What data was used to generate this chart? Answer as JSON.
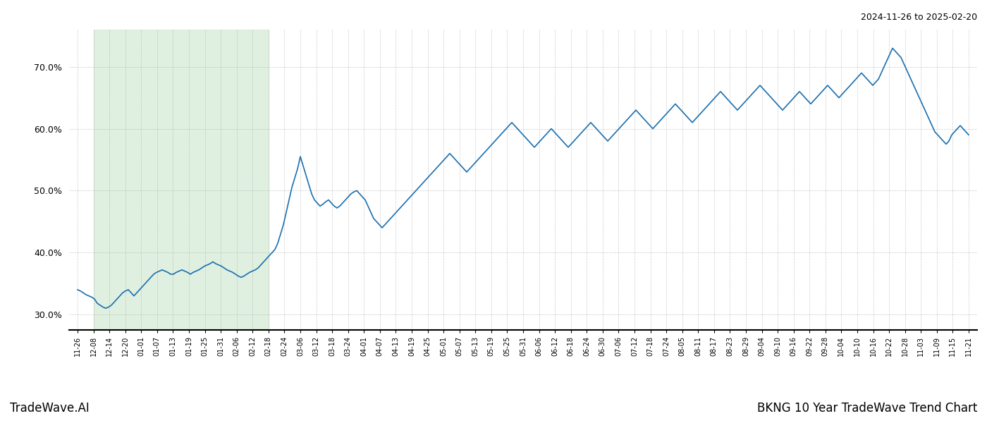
{
  "title_top_right": "2024-11-26 to 2025-02-20",
  "title_bottom_left": "TradeWave.AI",
  "title_bottom_right": "BKNG 10 Year TradeWave Trend Chart",
  "bg_color": "#ffffff",
  "grid_color": "#aaaaaa",
  "line_color": "#1a6faf",
  "shade_color": "#d4ead4",
  "shade_alpha": 0.7,
  "ylim": [
    27.5,
    76.0
  ],
  "yticks": [
    30.0,
    40.0,
    50.0,
    60.0,
    70.0
  ],
  "x_labels": [
    "11-26",
    "12-08",
    "12-14",
    "12-20",
    "01-01",
    "01-07",
    "01-13",
    "01-19",
    "01-25",
    "01-31",
    "02-06",
    "02-12",
    "02-18",
    "02-24",
    "03-06",
    "03-12",
    "03-18",
    "03-24",
    "04-01",
    "04-07",
    "04-13",
    "04-19",
    "04-25",
    "05-01",
    "05-07",
    "05-13",
    "05-19",
    "05-25",
    "05-31",
    "06-06",
    "06-12",
    "06-18",
    "06-24",
    "06-30",
    "07-06",
    "07-12",
    "07-18",
    "07-24",
    "08-05",
    "08-11",
    "08-17",
    "08-23",
    "08-29",
    "09-04",
    "09-10",
    "09-16",
    "09-22",
    "09-28",
    "10-04",
    "10-10",
    "10-16",
    "10-22",
    "10-28",
    "11-03",
    "11-09",
    "11-15",
    "11-21"
  ],
  "shade_start_label": "12-08",
  "shade_end_label": "02-18",
  "values": [
    34.0,
    33.8,
    33.5,
    33.2,
    33.0,
    32.8,
    32.5,
    31.8,
    31.5,
    31.2,
    31.0,
    31.2,
    31.5,
    32.0,
    32.5,
    33.0,
    33.5,
    33.8,
    34.0,
    33.5,
    33.0,
    33.5,
    34.0,
    34.5,
    35.0,
    35.5,
    36.0,
    36.5,
    36.8,
    37.0,
    37.2,
    37.0,
    36.8,
    36.5,
    36.5,
    36.8,
    37.0,
    37.2,
    37.0,
    36.8,
    36.5,
    36.8,
    37.0,
    37.2,
    37.5,
    37.8,
    38.0,
    38.2,
    38.5,
    38.2,
    38.0,
    37.8,
    37.5,
    37.2,
    37.0,
    36.8,
    36.5,
    36.2,
    36.0,
    36.2,
    36.5,
    36.8,
    37.0,
    37.2,
    37.5,
    38.0,
    38.5,
    39.0,
    39.5,
    40.0,
    40.5,
    41.5,
    43.0,
    44.5,
    46.5,
    48.5,
    50.5,
    52.0,
    53.5,
    55.5,
    54.0,
    52.5,
    51.0,
    49.5,
    48.5,
    48.0,
    47.5,
    47.8,
    48.2,
    48.5,
    48.0,
    47.5,
    47.2,
    47.5,
    48.0,
    48.5,
    49.0,
    49.5,
    49.8,
    50.0,
    49.5,
    49.0,
    48.5,
    47.5,
    46.5,
    45.5,
    45.0,
    44.5,
    44.0,
    44.5,
    45.0,
    45.5,
    46.0,
    46.5,
    47.0,
    47.5,
    48.0,
    48.5,
    49.0,
    49.5,
    50.0,
    50.5,
    51.0,
    51.5,
    52.0,
    52.5,
    53.0,
    53.5,
    54.0,
    54.5,
    55.0,
    55.5,
    56.0,
    55.5,
    55.0,
    54.5,
    54.0,
    53.5,
    53.0,
    53.5,
    54.0,
    54.5,
    55.0,
    55.5,
    56.0,
    56.5,
    57.0,
    57.5,
    58.0,
    58.5,
    59.0,
    59.5,
    60.0,
    60.5,
    61.0,
    60.5,
    60.0,
    59.5,
    59.0,
    58.5,
    58.0,
    57.5,
    57.0,
    57.5,
    58.0,
    58.5,
    59.0,
    59.5,
    60.0,
    59.5,
    59.0,
    58.5,
    58.0,
    57.5,
    57.0,
    57.5,
    58.0,
    58.5,
    59.0,
    59.5,
    60.0,
    60.5,
    61.0,
    60.5,
    60.0,
    59.5,
    59.0,
    58.5,
    58.0,
    58.5,
    59.0,
    59.5,
    60.0,
    60.5,
    61.0,
    61.5,
    62.0,
    62.5,
    63.0,
    62.5,
    62.0,
    61.5,
    61.0,
    60.5,
    60.0,
    60.5,
    61.0,
    61.5,
    62.0,
    62.5,
    63.0,
    63.5,
    64.0,
    63.5,
    63.0,
    62.5,
    62.0,
    61.5,
    61.0,
    61.5,
    62.0,
    62.5,
    63.0,
    63.5,
    64.0,
    64.5,
    65.0,
    65.5,
    66.0,
    65.5,
    65.0,
    64.5,
    64.0,
    63.5,
    63.0,
    63.5,
    64.0,
    64.5,
    65.0,
    65.5,
    66.0,
    66.5,
    67.0,
    66.5,
    66.0,
    65.5,
    65.0,
    64.5,
    64.0,
    63.5,
    63.0,
    63.5,
    64.0,
    64.5,
    65.0,
    65.5,
    66.0,
    65.5,
    65.0,
    64.5,
    64.0,
    64.5,
    65.0,
    65.5,
    66.0,
    66.5,
    67.0,
    66.5,
    66.0,
    65.5,
    65.0,
    65.5,
    66.0,
    66.5,
    67.0,
    67.5,
    68.0,
    68.5,
    69.0,
    68.5,
    68.0,
    67.5,
    67.0,
    67.5,
    68.0,
    69.0,
    70.0,
    71.0,
    72.0,
    73.0,
    72.5,
    72.0,
    71.5,
    70.5,
    69.5,
    68.5,
    67.5,
    66.5,
    65.5,
    64.5,
    63.5,
    62.5,
    61.5,
    60.5,
    59.5,
    59.0,
    58.5,
    58.0,
    57.5,
    58.0,
    59.0,
    59.5,
    60.0,
    60.5,
    60.0,
    59.5,
    59.0
  ]
}
